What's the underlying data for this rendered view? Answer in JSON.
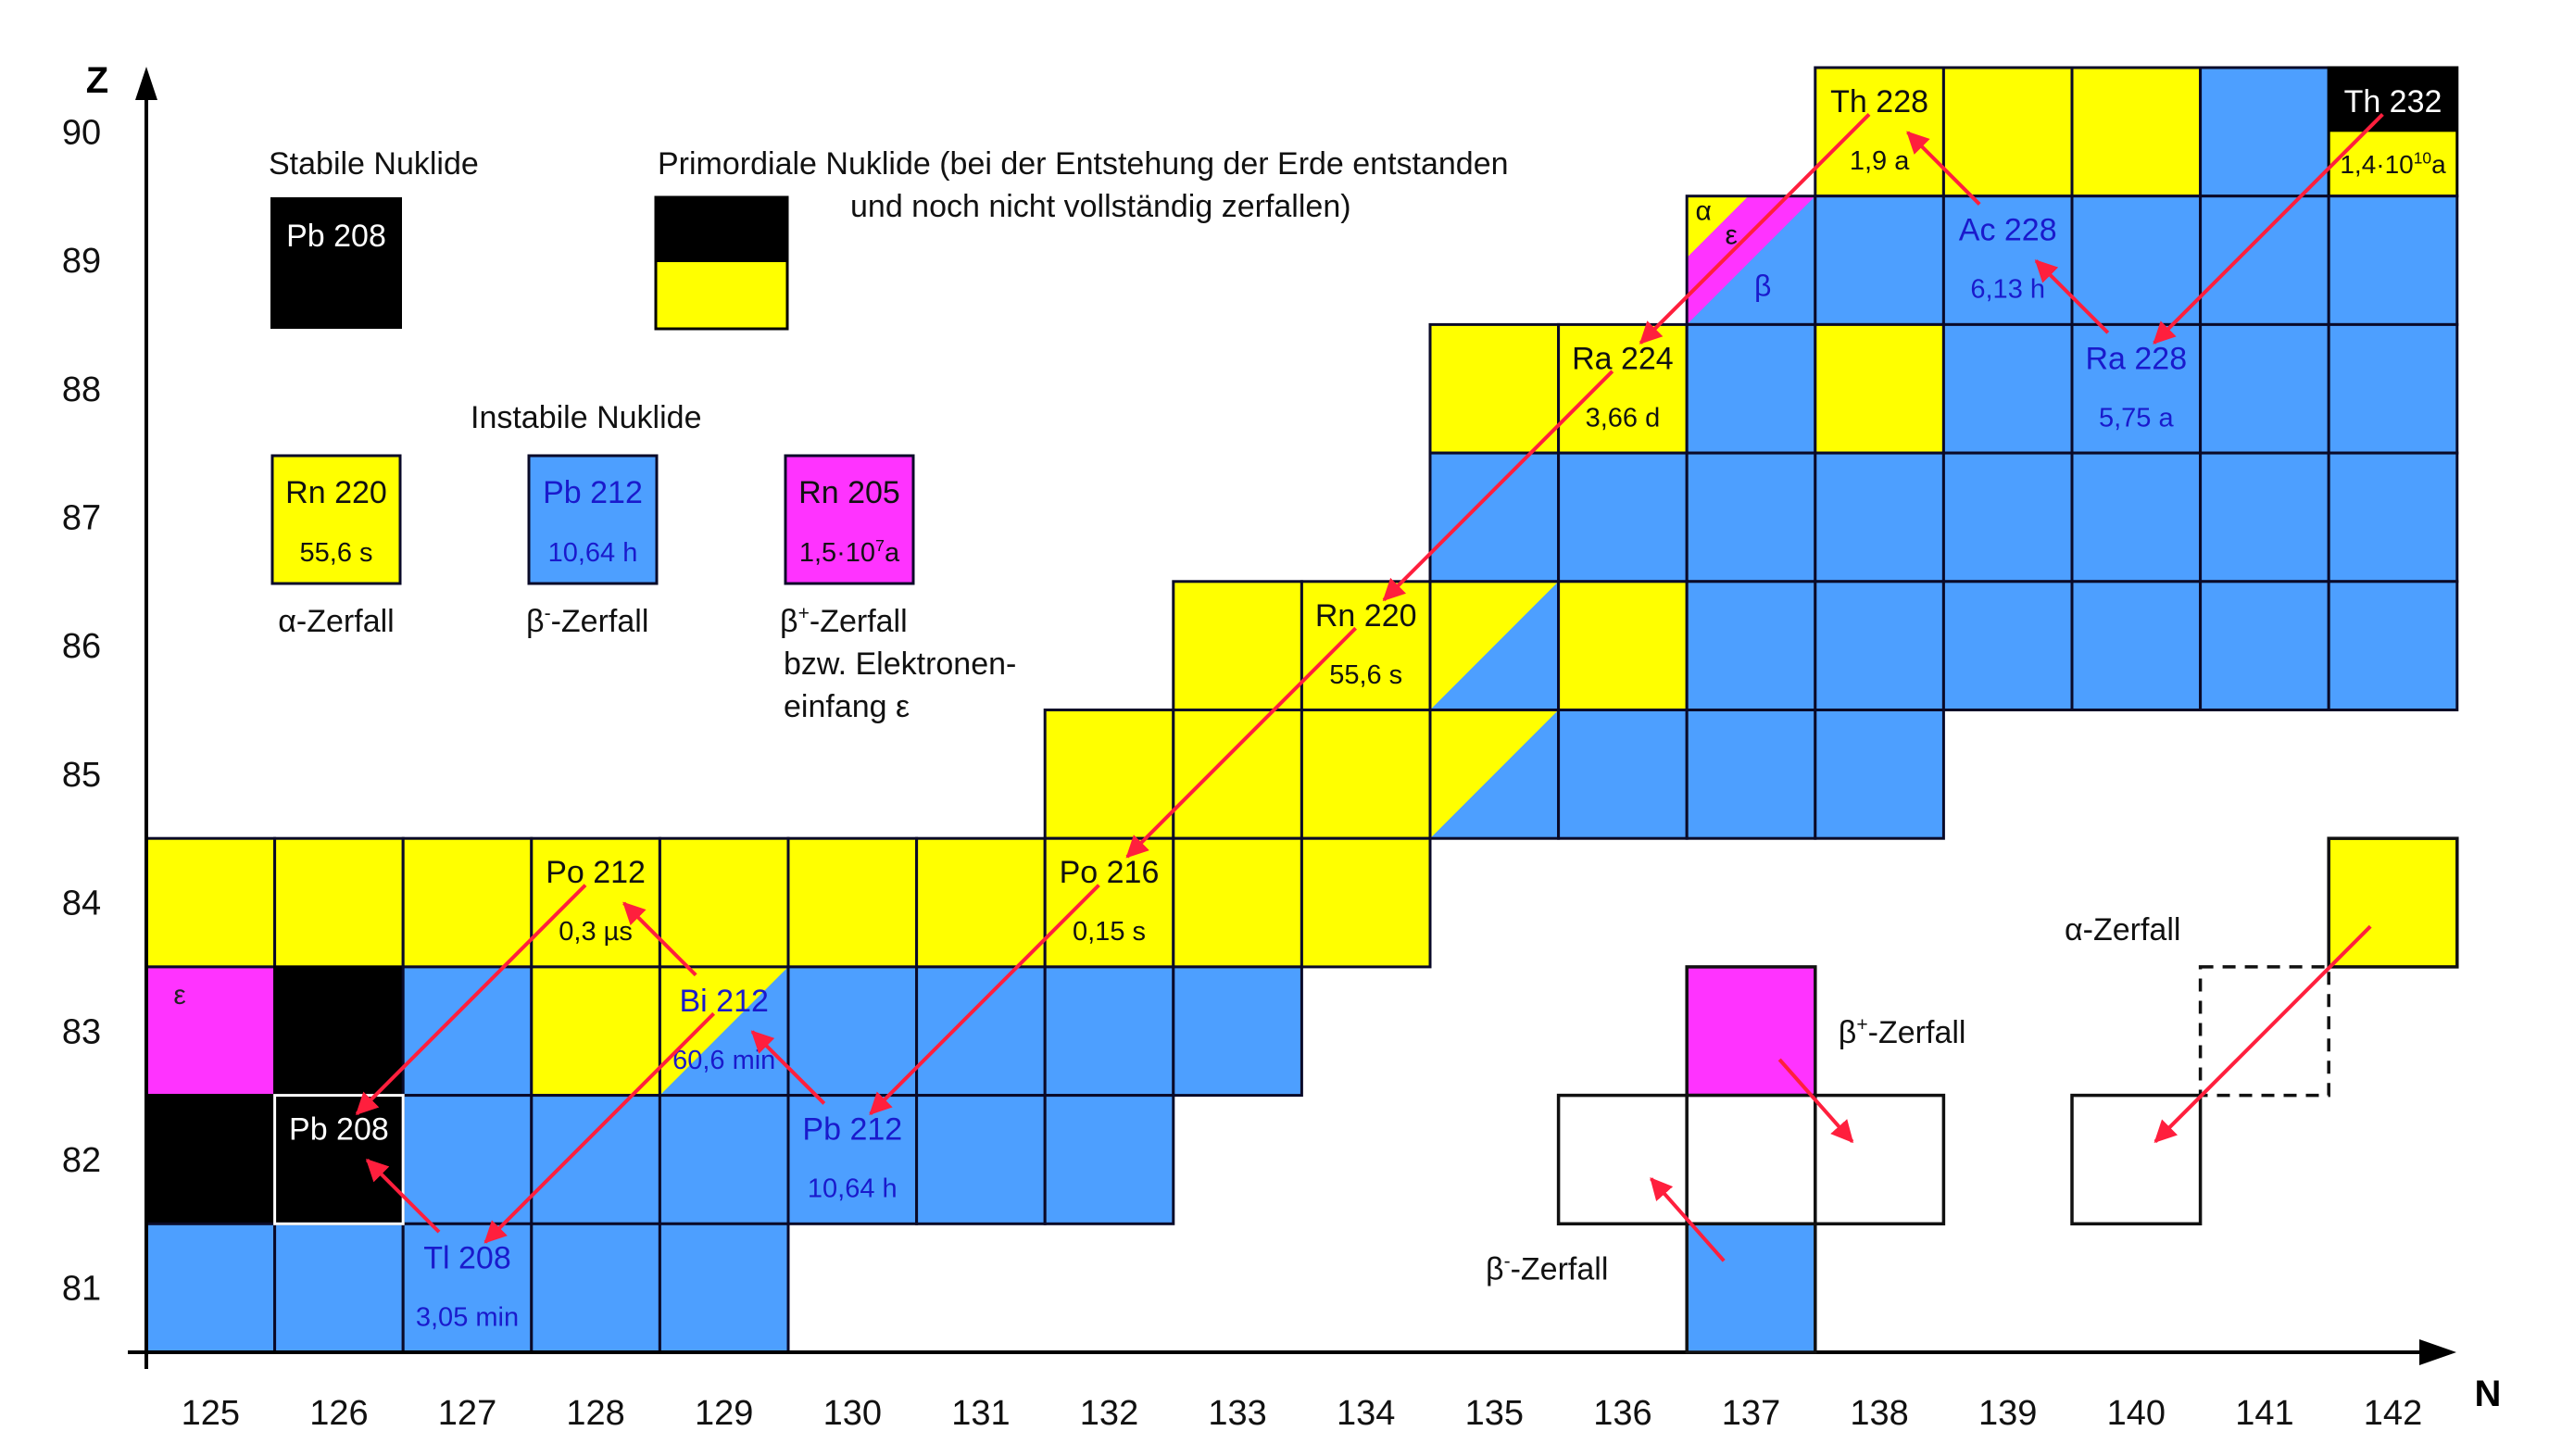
{
  "axes": {
    "y_label": "Z",
    "x_label": "N",
    "z_ticks": [
      "81",
      "82",
      "83",
      "84",
      "85",
      "86",
      "87",
      "88",
      "89",
      "90"
    ],
    "n_ticks": [
      "125",
      "126",
      "127",
      "128",
      "129",
      "130",
      "131",
      "132",
      "133",
      "134",
      "135",
      "136",
      "137",
      "138",
      "139",
      "140",
      "141",
      "142"
    ]
  },
  "colors": {
    "alpha": "#ffff00",
    "beta_minus": "#4d9fff",
    "beta_plus": "#ff33ff",
    "stable": "#000000",
    "arrow": "#ff1f3d",
    "label_blue": "#1a1acc"
  },
  "rows": [
    {
      "z": 90,
      "cells": {
        "138": "y",
        "139": "y",
        "140": "y",
        "141": "b",
        "142": "p"
      }
    },
    {
      "z": 89,
      "cells": {
        "137": "m",
        "138": "b",
        "139": "b",
        "140": "b",
        "141": "b",
        "142": "b"
      }
    },
    {
      "z": 88,
      "cells": {
        "135": "y",
        "136": "y",
        "137": "b",
        "138": "y",
        "139": "b",
        "140": "b",
        "141": "b",
        "142": "b"
      }
    },
    {
      "z": 87,
      "cells": {
        "135": "b",
        "136": "b",
        "137": "b",
        "138": "b",
        "139": "b",
        "140": "b",
        "141": "b",
        "142": "b"
      }
    },
    {
      "z": 86,
      "cells": {
        "133": "y",
        "134": "y",
        "135": "yb",
        "136": "y",
        "137": "b",
        "138": "b",
        "139": "b",
        "140": "b",
        "141": "b",
        "142": "b"
      }
    },
    {
      "z": 85,
      "cells": {
        "132": "y",
        "133": "y",
        "134": "y",
        "135": "yb",
        "136": "b",
        "137": "b",
        "138": "b"
      }
    },
    {
      "z": 84,
      "cells": {
        "125": "y",
        "126": "y",
        "127": "y",
        "128": "y",
        "129": "y",
        "130": "y",
        "131": "y",
        "132": "y",
        "133": "y",
        "134": "y"
      }
    },
    {
      "z": 83,
      "cells": {
        "125": "m",
        "126": "k",
        "127": "b",
        "128": "y",
        "129": "yb",
        "130": "b",
        "131": "b",
        "132": "b",
        "133": "b"
      }
    },
    {
      "z": 82,
      "cells": {
        "125": "k",
        "126": "k",
        "127": "b",
        "128": "b",
        "129": "b",
        "130": "b",
        "131": "b",
        "132": "b"
      }
    },
    {
      "z": 81,
      "cells": {
        "125": "b",
        "126": "b",
        "127": "b",
        "128": "b",
        "129": "b"
      }
    }
  ],
  "nuclides": [
    {
      "n": 138,
      "z": 90,
      "name": "Th 228",
      "half_life": "1,9 a",
      "text": "dark"
    },
    {
      "n": 142,
      "z": 90,
      "name": "Th 232",
      "half_life_base": "1,4·10",
      "half_life_exp": "10",
      "half_life_unit": "a",
      "text": "primordial"
    },
    {
      "n": 139,
      "z": 89,
      "name": "Ac 228",
      "half_life": "6,13 h",
      "text": "blue"
    },
    {
      "n": 136,
      "z": 88,
      "name": "Ra 224",
      "half_life": "3,66 d",
      "text": "dark"
    },
    {
      "n": 140,
      "z": 88,
      "name": "Ra 228",
      "half_life": "5,75 a",
      "text": "blue"
    },
    {
      "n": 134,
      "z": 86,
      "name": "Rn 220",
      "half_life": "55,6 s",
      "text": "dark"
    },
    {
      "n": 132,
      "z": 84,
      "name": "Po 216",
      "half_life": "0,15 s",
      "text": "dark"
    },
    {
      "n": 128,
      "z": 84,
      "name": "Po 212",
      "half_life": "0,3 µs",
      "text": "dark"
    },
    {
      "n": 129,
      "z": 83,
      "name": "Bi 212",
      "half_life": "60,6 min",
      "text": "blue"
    },
    {
      "n": 130,
      "z": 82,
      "name": "Pb 212",
      "half_life": "10,64 h",
      "text": "blue"
    },
    {
      "n": 126,
      "z": 82,
      "name": "Pb 208",
      "half_life": "",
      "text": "white"
    },
    {
      "n": 127,
      "z": 81,
      "name": "Tl 208",
      "half_life": "3,05 min",
      "text": "blue"
    }
  ],
  "cell_marks": {
    "eps_137_89": "ε",
    "alpha_137_89": "α",
    "beta_137_89": "β",
    "eps_125_83": "ε"
  },
  "decay_arrows": [
    {
      "from": [
        138,
        90
      ],
      "to": [
        136,
        88
      ],
      "type": "alpha"
    },
    {
      "from": [
        142,
        90
      ],
      "to": [
        140,
        88
      ],
      "type": "alpha"
    },
    {
      "from": [
        140,
        88
      ],
      "to": [
        139,
        89
      ],
      "type": "beta"
    },
    {
      "from": [
        139,
        89
      ],
      "to": [
        138,
        90
      ],
      "type": "beta"
    },
    {
      "from": [
        136,
        88
      ],
      "to": [
        134,
        86
      ],
      "type": "alpha"
    },
    {
      "from": [
        134,
        86
      ],
      "to": [
        132,
        84
      ],
      "type": "alpha"
    },
    {
      "from": [
        132,
        84
      ],
      "to": [
        130,
        82
      ],
      "type": "alpha"
    },
    {
      "from": [
        130,
        82
      ],
      "to": [
        129,
        83
      ],
      "type": "beta"
    },
    {
      "from": [
        129,
        83
      ],
      "to": [
        128,
        84
      ],
      "type": "beta"
    },
    {
      "from": [
        129,
        83
      ],
      "to": [
        127,
        81
      ],
      "type": "alpha"
    },
    {
      "from": [
        128,
        84
      ],
      "to": [
        126,
        82
      ],
      "type": "alpha"
    },
    {
      "from": [
        127,
        81
      ],
      "to": [
        126,
        82
      ],
      "type": "beta"
    }
  ],
  "legend": {
    "stable_title": "Stabile Nuklide",
    "stable_sample": {
      "name": "Pb 208"
    },
    "primordial_line1": "Primordiale Nuklide (bei der Entstehung der Erde entstanden",
    "primordial_line2": "und noch nicht vollständig zerfallen)",
    "unstable_title": "Instabile Nuklide",
    "alpha_sample": {
      "name": "Rn 220",
      "half_life": "55,6 s",
      "caption": "α-Zerfall"
    },
    "beta_sample": {
      "name": "Pb 212",
      "half_life": "10,64 h",
      "caption_base": "β",
      "caption_sup": "-",
      "caption_rest": "-Zerfall"
    },
    "beta_plus_sample": {
      "name": "Rn 205",
      "half_life_base": "1,5·10",
      "half_life_exp": "7",
      "half_life_unit": "a",
      "caption_base": "β",
      "caption_sup": "+",
      "caption_rest": "-Zerfall",
      "caption_line2": "bzw. Elektronen-",
      "caption_line3": "einfang ε"
    }
  },
  "schematics": {
    "beta_plus_base": "β",
    "beta_plus_sup": "+",
    "beta_plus_rest": "-Zerfall",
    "beta_minus_base": "β",
    "beta_minus_sup": "-",
    "beta_minus_rest": "-Zerfall",
    "alpha_label": "α-Zerfall"
  }
}
